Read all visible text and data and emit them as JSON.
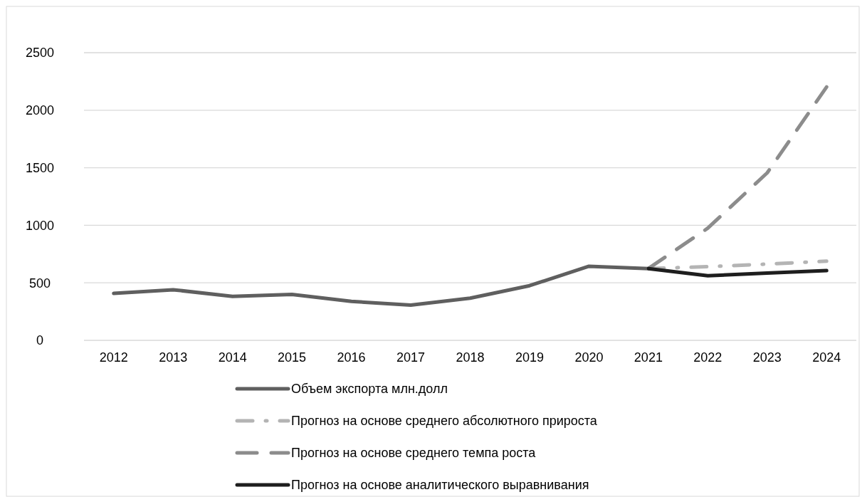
{
  "chart_data": {
    "type": "line",
    "categories": [
      "2012",
      "2013",
      "2014",
      "2015",
      "2016",
      "2017",
      "2018",
      "2019",
      "2020",
      "2021",
      "2022",
      "2023",
      "2024"
    ],
    "series": [
      {
        "name": "Объем экспорта млн.долл",
        "color": "#5f5f5f",
        "line_style": "solid",
        "values": [
          408,
          440,
          382,
          399,
          339,
          306,
          367,
          475,
          644,
          624,
          null,
          null,
          null
        ]
      },
      {
        "name": "Прогноз на основе среднего абсолютного прироста",
        "color": "#b4b4b4",
        "line_style": "dashdot",
        "values": [
          null,
          null,
          null,
          null,
          null,
          null,
          null,
          null,
          null,
          624,
          640,
          663,
          688
        ]
      },
      {
        "name": "Прогноз на основе среднего темпа роста",
        "color": "#8c8c8c",
        "line_style": "dashed",
        "values": [
          null,
          null,
          null,
          null,
          null,
          null,
          null,
          null,
          null,
          624,
          975,
          1456,
          2202
        ]
      },
      {
        "name": "Прогноз на основе аналитического выравнивания",
        "color": "#1e1e1e",
        "line_style": "solid",
        "values": [
          null,
          null,
          null,
          null,
          null,
          null,
          null,
          null,
          null,
          624,
          562,
          585,
          606
        ]
      }
    ],
    "ylim": [
      0,
      2500
    ],
    "yticks": [
      0,
      500,
      1000,
      1500,
      2000,
      2500
    ],
    "grid": "y",
    "legend": "bottom",
    "marker": "none"
  }
}
